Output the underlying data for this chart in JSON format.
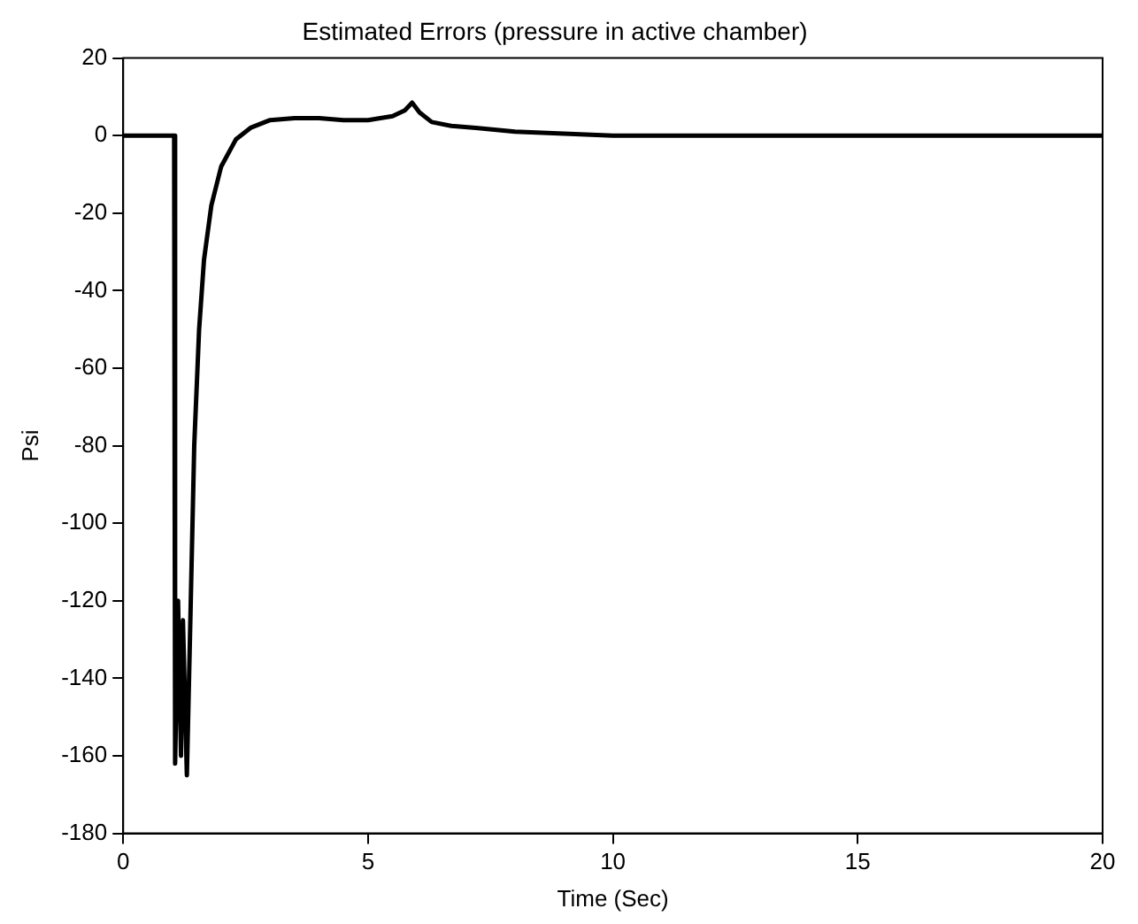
{
  "chart_data": {
    "type": "line",
    "title": "Estimated Errors (pressure in active chamber)",
    "xlabel": "Time (Sec)",
    "ylabel": "Psi",
    "x": [
      0,
      1.04,
      1.06,
      1.12,
      1.18,
      1.22,
      1.3,
      1.38,
      1.45,
      1.55,
      1.65,
      1.8,
      2.0,
      2.3,
      2.6,
      3.0,
      3.5,
      4.0,
      4.5,
      5.0,
      5.5,
      5.75,
      5.9,
      6.05,
      6.3,
      6.7,
      7.2,
      8.0,
      9.0,
      10.0,
      12.0,
      15.0,
      20.0
    ],
    "series": [
      {
        "color": "#000000",
        "values": [
          0,
          0,
          -162,
          -120,
          -160,
          -125,
          -165,
          -120,
          -80,
          -50,
          -32,
          -18,
          -8,
          -1,
          2,
          4,
          4.5,
          4.5,
          4,
          4,
          5,
          6.5,
          8.5,
          6,
          3.5,
          2.5,
          2,
          1,
          0.5,
          0,
          0,
          0,
          0
        ]
      }
    ],
    "xlim": [
      0,
      20
    ],
    "xticks": [
      0,
      5,
      10,
      15,
      20
    ],
    "ylim": [
      -180,
      20
    ],
    "yticks": [
      -180,
      -160,
      -140,
      -120,
      -100,
      -80,
      -60,
      -40,
      -20,
      0,
      20
    ],
    "grid": false,
    "legend": false,
    "marker": "none",
    "line_style": "solid"
  }
}
